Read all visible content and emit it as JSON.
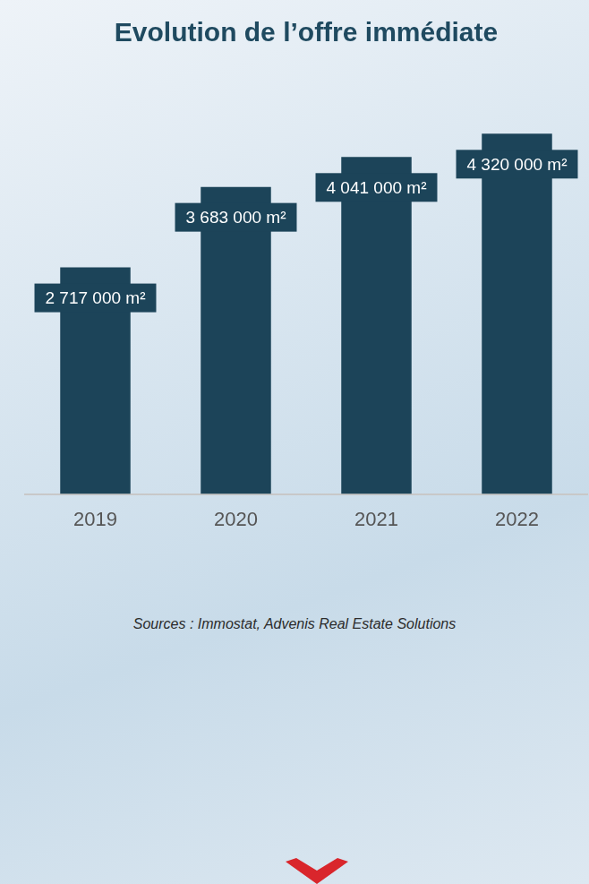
{
  "chart_data": {
    "type": "bar",
    "title": "Evolution de l’offre immédiate",
    "categories": [
      "2019",
      "2020",
      "2021",
      "2022"
    ],
    "values": [
      2717000,
      3683000,
      4041000,
      4320000
    ],
    "value_labels": [
      "2 717 000 m²",
      "3 683 000 m²",
      "4 041 000 m²",
      "4 320 000 m²"
    ],
    "color": "#1c4459",
    "ylim": [
      0,
      5000000
    ],
    "grid": false,
    "data_labels": true,
    "tick_labels": "x",
    "source": "Sources : Immostat, Advenis Real Estate Solutions"
  }
}
